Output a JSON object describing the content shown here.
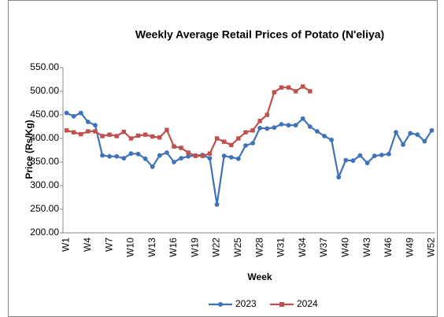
{
  "chart_data": {
    "type": "line",
    "title": "Weekly Average Retail Prices of  Potato (N'eliya)",
    "xlabel": "Week",
    "ylabel": "Price (Rs/Kg)",
    "categories": [
      "W1",
      null,
      null,
      "W4",
      null,
      null,
      "W7",
      null,
      null,
      "W10",
      null,
      null,
      "W13",
      null,
      null,
      "W16",
      null,
      null,
      "W19",
      null,
      null,
      "W22",
      null,
      null,
      "W25",
      null,
      null,
      "W28",
      null,
      null,
      "W31",
      null,
      null,
      "W34",
      null,
      null,
      "W37",
      null,
      null,
      "W40",
      null,
      null,
      "W43",
      null,
      null,
      "W46",
      null,
      null,
      "W49",
      null,
      null,
      "W52"
    ],
    "series": [
      {
        "name": "2023",
        "color": "#3f72b8",
        "marker": "circle",
        "values": [
          454,
          447,
          454,
          435,
          428,
          364,
          362,
          362,
          358,
          368,
          367,
          357,
          340,
          364,
          370,
          350,
          358,
          362,
          364,
          365,
          358,
          260,
          363,
          360,
          357,
          385,
          390,
          422,
          421,
          423,
          430,
          428,
          428,
          442,
          425,
          415,
          405,
          397,
          318,
          354,
          353,
          364,
          348,
          363,
          365,
          367,
          413,
          387,
          411,
          408,
          394,
          417
        ]
      },
      {
        "name": "2024",
        "color": "#c0504d",
        "marker": "square",
        "values": [
          417,
          413,
          409,
          415,
          415,
          405,
          408,
          405,
          414,
          400,
          406,
          408,
          404,
          402,
          418,
          383,
          380,
          370,
          363,
          363,
          368,
          400,
          393,
          386,
          400,
          413,
          417,
          437,
          450,
          498,
          508,
          508,
          500,
          510,
          500,
          null,
          null,
          null,
          null,
          null,
          null,
          null,
          null,
          null,
          null,
          null,
          null,
          null,
          null,
          null,
          null,
          null
        ]
      }
    ],
    "ylim": [
      200,
      550
    ],
    "yticks": [
      {
        "value": 200,
        "label": "200.00"
      },
      {
        "value": 250,
        "label": "250.00"
      },
      {
        "value": 300,
        "label": "300.00"
      },
      {
        "value": 350,
        "label": "350.00"
      },
      {
        "value": 400,
        "label": "400.00"
      },
      {
        "value": 450,
        "label": "450.00"
      },
      {
        "value": 500,
        "label": "500.00"
      },
      {
        "value": 550,
        "label": "550.00"
      }
    ],
    "grid": false,
    "legend": "bottom"
  }
}
